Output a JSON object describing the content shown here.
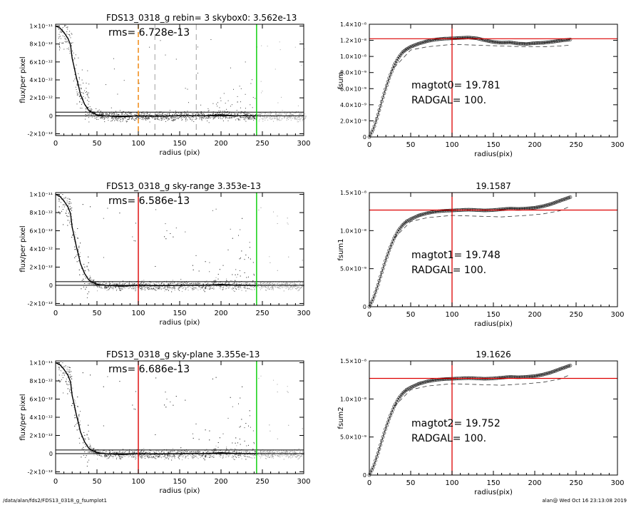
{
  "footer": {
    "path": "/data/alan/fds2/FDS13_0318_g_fsumplot1",
    "user_date": "alan@  Wed Oct 16 23:13:08 2019"
  },
  "colors": {
    "axis": "#000000",
    "scatter_dark": "#404040",
    "scatter_light": "#a8a8a8",
    "red": "#dd0000",
    "green": "#00cc00",
    "orange": "#f08000",
    "dashed_grey": "#888888"
  },
  "chart_data": [
    {
      "id": "left1",
      "type": "scatter",
      "title": "FDS13_0318_g rebin= 3    skybox0:  3.562e-13",
      "annotations": [
        "rms= 6.728e-13"
      ],
      "xlabel": "radius (pix)",
      "ylabel": "flux/per pixel",
      "xlim": [
        0,
        300
      ],
      "ylim": [
        -2.2e-12,
        1.02e-11
      ],
      "xticks": [
        0,
        50,
        100,
        150,
        200,
        250,
        300
      ],
      "yticks": [
        "-2×10⁻¹²",
        "0",
        "2×10⁻¹²",
        "4×10⁻¹²",
        "6×10⁻¹²",
        "8×10⁻¹²",
        "1×10⁻¹¹"
      ],
      "ytick_values": [
        -2e-12,
        0,
        2e-12,
        4e-12,
        6e-12,
        8e-12,
        1e-11
      ],
      "profile": {
        "x": [
          0,
          5,
          10,
          15,
          18,
          20,
          22,
          25,
          28,
          30,
          35,
          40,
          45,
          50,
          60,
          80,
          100,
          120,
          150,
          180,
          200,
          220,
          243
        ],
        "y": [
          1e-11,
          9.8e-12,
          9.3e-12,
          8.6e-12,
          7.9e-12,
          6.4e-12,
          5.6e-12,
          4.3e-12,
          3.2e-12,
          2.4e-12,
          1.3e-12,
          6e-13,
          3e-13,
          1e-13,
          0,
          -1e-13,
          0,
          -5e-14,
          0,
          0,
          1e-13,
          0,
          0
        ]
      },
      "hlines": [
        4e-13,
        0
      ],
      "vlines": [
        {
          "x": 100,
          "color": "orange",
          "style": "dashed"
        },
        {
          "x": 120,
          "color": "grey",
          "style": "dashed"
        },
        {
          "x": 170,
          "color": "grey",
          "style": "dashed"
        },
        {
          "x": 243,
          "color": "green",
          "style": "solid"
        }
      ],
      "scatter_density": "sparse"
    },
    {
      "id": "right1",
      "type": "line",
      "title": "",
      "annotations": [
        "magtot0=  19.781",
        "RADGAL=    100."
      ],
      "xlabel": "radius(pix)",
      "ylabel": "fsum",
      "xlim": [
        0,
        300
      ],
      "ylim": [
        0,
        1.4e-08
      ],
      "xticks": [
        0,
        50,
        100,
        150,
        200,
        250,
        300
      ],
      "yticks": [
        "0",
        "2.0×10⁻⁹",
        "4.0×10⁻⁹",
        "6.0×10⁻⁹",
        "8.0×10⁻⁹",
        "1.0×10⁻⁸",
        "1.2×10⁻⁸",
        "1.4×10⁻⁸"
      ],
      "ytick_values": [
        0,
        2e-09,
        4e-09,
        6e-09,
        8e-09,
        1e-08,
        1.2e-08,
        1.4e-08
      ],
      "curve": {
        "x": [
          0,
          5,
          10,
          15,
          20,
          25,
          30,
          35,
          40,
          45,
          50,
          60,
          70,
          80,
          90,
          100,
          110,
          120,
          130,
          140,
          150,
          160,
          170,
          180,
          190,
          200,
          210,
          220,
          230,
          243
        ],
        "y": [
          0,
          1e-09,
          2.6e-09,
          4.4e-09,
          6.1e-09,
          7.6e-09,
          8.9e-09,
          9.8e-09,
          1.05e-08,
          1.09e-08,
          1.12e-08,
          1.16e-08,
          1.19e-08,
          1.21e-08,
          1.22e-08,
          1.225e-08,
          1.23e-08,
          1.235e-08,
          1.225e-08,
          1.2e-08,
          1.18e-08,
          1.17e-08,
          1.175e-08,
          1.16e-08,
          1.155e-08,
          1.165e-08,
          1.17e-08,
          1.18e-08,
          1.195e-08,
          1.21e-08
        ]
      },
      "dashed_curve": {
        "x": [
          30,
          50,
          70,
          100,
          130,
          160,
          190,
          210,
          230,
          243
        ],
        "y": [
          8.6e-09,
          1.08e-08,
          1.12e-08,
          1.15e-08,
          1.14e-08,
          1.13e-08,
          1.12e-08,
          1.12e-08,
          1.13e-08,
          1.14e-08
        ]
      },
      "hline": 1.22e-08,
      "vline": 100
    },
    {
      "id": "left2",
      "type": "scatter",
      "title": "FDS13_0318_g sky-range  3.353e-13",
      "annotations": [
        "rms= 6.586e-13"
      ],
      "xlabel": "radius (pix)",
      "ylabel": "flux/per pixel",
      "xlim": [
        0,
        300
      ],
      "ylim": [
        -2.2e-12,
        1.02e-11
      ],
      "xticks": [
        0,
        50,
        100,
        150,
        200,
        250,
        300
      ],
      "yticks": [
        "-2×10⁻¹²",
        "0",
        "2×10⁻¹²",
        "4×10⁻¹²",
        "6×10⁻¹²",
        "8×10⁻¹²",
        "1×10⁻¹¹"
      ],
      "ytick_values": [
        -2e-12,
        0,
        2e-12,
        4e-12,
        6e-12,
        8e-12,
        1e-11
      ],
      "profile": {
        "x": [
          0,
          5,
          10,
          15,
          18,
          20,
          22,
          25,
          28,
          30,
          35,
          40,
          45,
          50,
          60,
          80,
          100,
          120,
          150,
          180,
          200,
          220,
          243
        ],
        "y": [
          1e-11,
          9.8e-12,
          9.3e-12,
          8.6e-12,
          7.9e-12,
          6.4e-12,
          5.6e-12,
          4.3e-12,
          3.2e-12,
          2.4e-12,
          1.3e-12,
          6e-13,
          3e-13,
          1e-13,
          0,
          -1e-13,
          0,
          -5e-14,
          0,
          0,
          1e-13,
          0,
          0
        ]
      },
      "hlines": [
        4e-13,
        0
      ],
      "vlines": [
        {
          "x": 100,
          "color": "red",
          "style": "solid"
        },
        {
          "x": 243,
          "color": "green",
          "style": "solid"
        }
      ],
      "scatter_density": "dense"
    },
    {
      "id": "right2",
      "type": "line",
      "title": "19.1587",
      "annotations": [
        "magtot1=  19.748",
        "RADGAL=    100."
      ],
      "xlabel": "radius(pix)",
      "ylabel": "fsum1",
      "xlim": [
        0,
        300
      ],
      "ylim": [
        0,
        1.5e-08
      ],
      "xticks": [
        0,
        50,
        100,
        150,
        200,
        250,
        300
      ],
      "yticks": [
        "0",
        "5.0×10⁻⁹",
        "1.0×10⁻⁸",
        "1.5×10⁻⁸"
      ],
      "ytick_values": [
        0,
        5e-09,
        1e-08,
        1.5e-08
      ],
      "curve": {
        "x": [
          0,
          5,
          10,
          15,
          20,
          25,
          30,
          35,
          40,
          45,
          50,
          60,
          70,
          80,
          90,
          100,
          110,
          120,
          130,
          140,
          150,
          160,
          170,
          180,
          190,
          200,
          210,
          220,
          230,
          243
        ],
        "y": [
          0,
          1.1e-09,
          2.7e-09,
          4.5e-09,
          6.2e-09,
          7.7e-09,
          9e-09,
          1e-08,
          1.07e-08,
          1.12e-08,
          1.15e-08,
          1.2e-08,
          1.23e-08,
          1.25e-08,
          1.26e-08,
          1.265e-08,
          1.27e-08,
          1.275e-08,
          1.27e-08,
          1.265e-08,
          1.27e-08,
          1.28e-08,
          1.29e-08,
          1.285e-08,
          1.29e-08,
          1.3e-08,
          1.32e-08,
          1.35e-08,
          1.39e-08,
          1.44e-08
        ]
      },
      "dashed_curve": {
        "x": [
          30,
          50,
          70,
          100,
          130,
          160,
          190,
          210,
          230,
          243
        ],
        "y": [
          9e-09,
          1.12e-08,
          1.17e-08,
          1.2e-08,
          1.19e-08,
          1.18e-08,
          1.2e-08,
          1.22e-08,
          1.26e-08,
          1.32e-08
        ]
      },
      "hline": 1.27e-08,
      "vline": 100
    },
    {
      "id": "left3",
      "type": "scatter",
      "title": "FDS13_0318_g sky-plane  3.355e-13",
      "annotations": [
        "rms= 6.686e-13"
      ],
      "xlabel": "radius (pix)",
      "ylabel": "flux/per pixel",
      "xlim": [
        0,
        300
      ],
      "ylim": [
        -2.2e-12,
        1.02e-11
      ],
      "xticks": [
        0,
        50,
        100,
        150,
        200,
        250,
        300
      ],
      "yticks": [
        "-2×10⁻¹²",
        "0",
        "2×10⁻¹²",
        "4×10⁻¹²",
        "6×10⁻¹²",
        "8×10⁻¹²",
        "1×10⁻¹¹"
      ],
      "ytick_values": [
        -2e-12,
        0,
        2e-12,
        4e-12,
        6e-12,
        8e-12,
        1e-11
      ],
      "profile": {
        "x": [
          0,
          5,
          10,
          15,
          18,
          20,
          22,
          25,
          28,
          30,
          35,
          40,
          45,
          50,
          60,
          80,
          100,
          120,
          150,
          180,
          200,
          220,
          243
        ],
        "y": [
          1e-11,
          9.8e-12,
          9.3e-12,
          8.6e-12,
          7.9e-12,
          6.4e-12,
          5.6e-12,
          4.3e-12,
          3.2e-12,
          2.4e-12,
          1.3e-12,
          6e-13,
          3e-13,
          1e-13,
          0,
          -1e-13,
          0,
          -5e-14,
          0,
          0,
          1e-13,
          0,
          0
        ]
      },
      "hlines": [
        4e-13,
        0
      ],
      "vlines": [
        {
          "x": 100,
          "color": "red",
          "style": "solid"
        },
        {
          "x": 243,
          "color": "green",
          "style": "solid"
        }
      ],
      "scatter_density": "dense"
    },
    {
      "id": "right3",
      "type": "line",
      "title": "19.1626",
      "annotations": [
        "magtot2=  19.752",
        "RADGAL=    100."
      ],
      "xlabel": "radius(pix)",
      "ylabel": "fsum2",
      "xlim": [
        0,
        300
      ],
      "ylim": [
        0,
        1.5e-08
      ],
      "xticks": [
        0,
        50,
        100,
        150,
        200,
        250,
        300
      ],
      "yticks": [
        "0",
        "5.0×10⁻⁹",
        "1.0×10⁻⁸",
        "1.5×10⁻⁸"
      ],
      "ytick_values": [
        0,
        5e-09,
        1e-08,
        1.5e-08
      ],
      "curve": {
        "x": [
          0,
          5,
          10,
          15,
          20,
          25,
          30,
          35,
          40,
          45,
          50,
          60,
          70,
          80,
          90,
          100,
          110,
          120,
          130,
          140,
          150,
          160,
          170,
          180,
          190,
          200,
          210,
          220,
          230,
          243
        ],
        "y": [
          0,
          1.1e-09,
          2.7e-09,
          4.5e-09,
          6.2e-09,
          7.7e-09,
          9e-09,
          1e-08,
          1.07e-08,
          1.12e-08,
          1.15e-08,
          1.2e-08,
          1.23e-08,
          1.25e-08,
          1.26e-08,
          1.265e-08,
          1.27e-08,
          1.275e-08,
          1.27e-08,
          1.265e-08,
          1.27e-08,
          1.28e-08,
          1.29e-08,
          1.285e-08,
          1.29e-08,
          1.3e-08,
          1.32e-08,
          1.35e-08,
          1.39e-08,
          1.44e-08
        ]
      },
      "dashed_curve": {
        "x": [
          30,
          50,
          70,
          100,
          130,
          160,
          190,
          210,
          230,
          243
        ],
        "y": [
          9e-09,
          1.12e-08,
          1.17e-08,
          1.2e-08,
          1.19e-08,
          1.18e-08,
          1.2e-08,
          1.22e-08,
          1.26e-08,
          1.32e-08
        ]
      },
      "hline": 1.27e-08,
      "vline": 100
    }
  ]
}
